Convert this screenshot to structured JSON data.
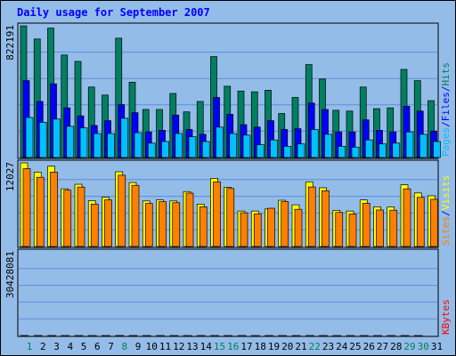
{
  "chart_data": {
    "type": "bar",
    "title": "Daily usage for September 2007",
    "categories": [
      "1",
      "2",
      "3",
      "4",
      "5",
      "6",
      "7",
      "8",
      "9",
      "10",
      "11",
      "12",
      "13",
      "14",
      "15",
      "16",
      "17",
      "18",
      "19",
      "20",
      "21",
      "22",
      "23",
      "24",
      "25",
      "26",
      "27",
      "28",
      "29",
      "30",
      "31"
    ],
    "weekend_days": [
      "1",
      "8",
      "15",
      "16",
      "22",
      "29",
      "30"
    ],
    "panels": [
      {
        "id": "hits_files_pages",
        "ymax_label": "822191",
        "ymax": 822191,
        "legend": [
          {
            "text": "Pages",
            "color": "#00c0ff"
          },
          {
            "text": "/",
            "color": "#0000ff"
          },
          {
            "text": "Files",
            "color": "#0000ff"
          },
          {
            "text": "/",
            "color": "#0000ff"
          },
          {
            "text": "Hits",
            "color": "#008060"
          }
        ],
        "series": [
          {
            "name": "Hits",
            "color": "#008060",
            "values": [
              822000,
              740000,
              808000,
              640000,
              600000,
              440000,
              390000,
              745000,
              470000,
              300000,
              300000,
              400000,
              285000,
              350000,
              630000,
              445000,
              415000,
              410000,
              420000,
              275000,
              375000,
              580000,
              490000,
              295000,
              290000,
              440000,
              305000,
              310000,
              550000,
              480000,
              355000
            ]
          },
          {
            "name": "Files",
            "color": "#0000ff",
            "values": [
              480000,
              350000,
              460000,
              310000,
              260000,
              200000,
              230000,
              330000,
              280000,
              160000,
              170000,
              265000,
              175000,
              145000,
              375000,
              270000,
              205000,
              190000,
              230000,
              175000,
              180000,
              340000,
              300000,
              160000,
              160000,
              235000,
              170000,
              160000,
              320000,
              290000,
              165000
            ]
          },
          {
            "name": "Pages",
            "color": "#00c0ff",
            "values": [
              250000,
              220000,
              240000,
              195000,
              185000,
              150000,
              150000,
              245000,
              155000,
              90000,
              100000,
              150000,
              130000,
              100000,
              190000,
              150000,
              140000,
              80000,
              110000,
              70000,
              85000,
              175000,
              145000,
              70000,
              65000,
              110000,
              85000,
              90000,
              160000,
              145000,
              100000
            ]
          }
        ]
      },
      {
        "id": "visits_sites",
        "ymax_label": "12027",
        "ymax": 12027,
        "legend": [
          {
            "text": "Sites",
            "color": "#ff8000"
          },
          {
            "text": "/",
            "color": "#0000ff"
          },
          {
            "text": "Visits",
            "color": "#ffff00"
          }
        ],
        "series": [
          {
            "name": "Visits",
            "color": "#ffff00",
            "values": [
              12027,
              10700,
              11550,
              8300,
              8950,
              6600,
              7100,
              10750,
              9200,
              6550,
              6700,
              6550,
              7900,
              6100,
              9800,
              8500,
              5100,
              5100,
              5400,
              6650,
              6000,
              9300,
              8450,
              5200,
              5100,
              6700,
              5700,
              5700,
              8880,
              7700,
              7300
            ]
          },
          {
            "name": "Sites",
            "color": "#ff8000",
            "values": [
              11200,
              9950,
              10700,
              8100,
              8550,
              6100,
              6700,
              10250,
              8800,
              6200,
              6450,
              6300,
              7680,
              5700,
              9300,
              8350,
              4850,
              4700,
              5500,
              6450,
              5350,
              8560,
              8010,
              4900,
              4680,
              6210,
              5250,
              5220,
              8290,
              7070,
              6790
            ]
          }
        ]
      },
      {
        "id": "kbytes",
        "ymax_label": "30428081",
        "ymax": 30428081,
        "legend": [
          {
            "text": "KBytes",
            "color": "#ff0000"
          }
        ],
        "series": [
          {
            "name": "KBytes",
            "color": "#ff0000",
            "values": [
              19300,
              17900,
              22800,
              13500,
              15000,
              10600,
              11500,
              30428,
              17500,
              11000,
              10800,
              13800,
              9350,
              11150,
              15750,
              14100,
              9350,
              9050,
              12250,
              9350,
              10550,
              14650,
              14700,
              9350,
              9050,
              12450,
              9150,
              11550,
              14600,
              13000,
              0
            ]
          }
        ]
      }
    ]
  }
}
